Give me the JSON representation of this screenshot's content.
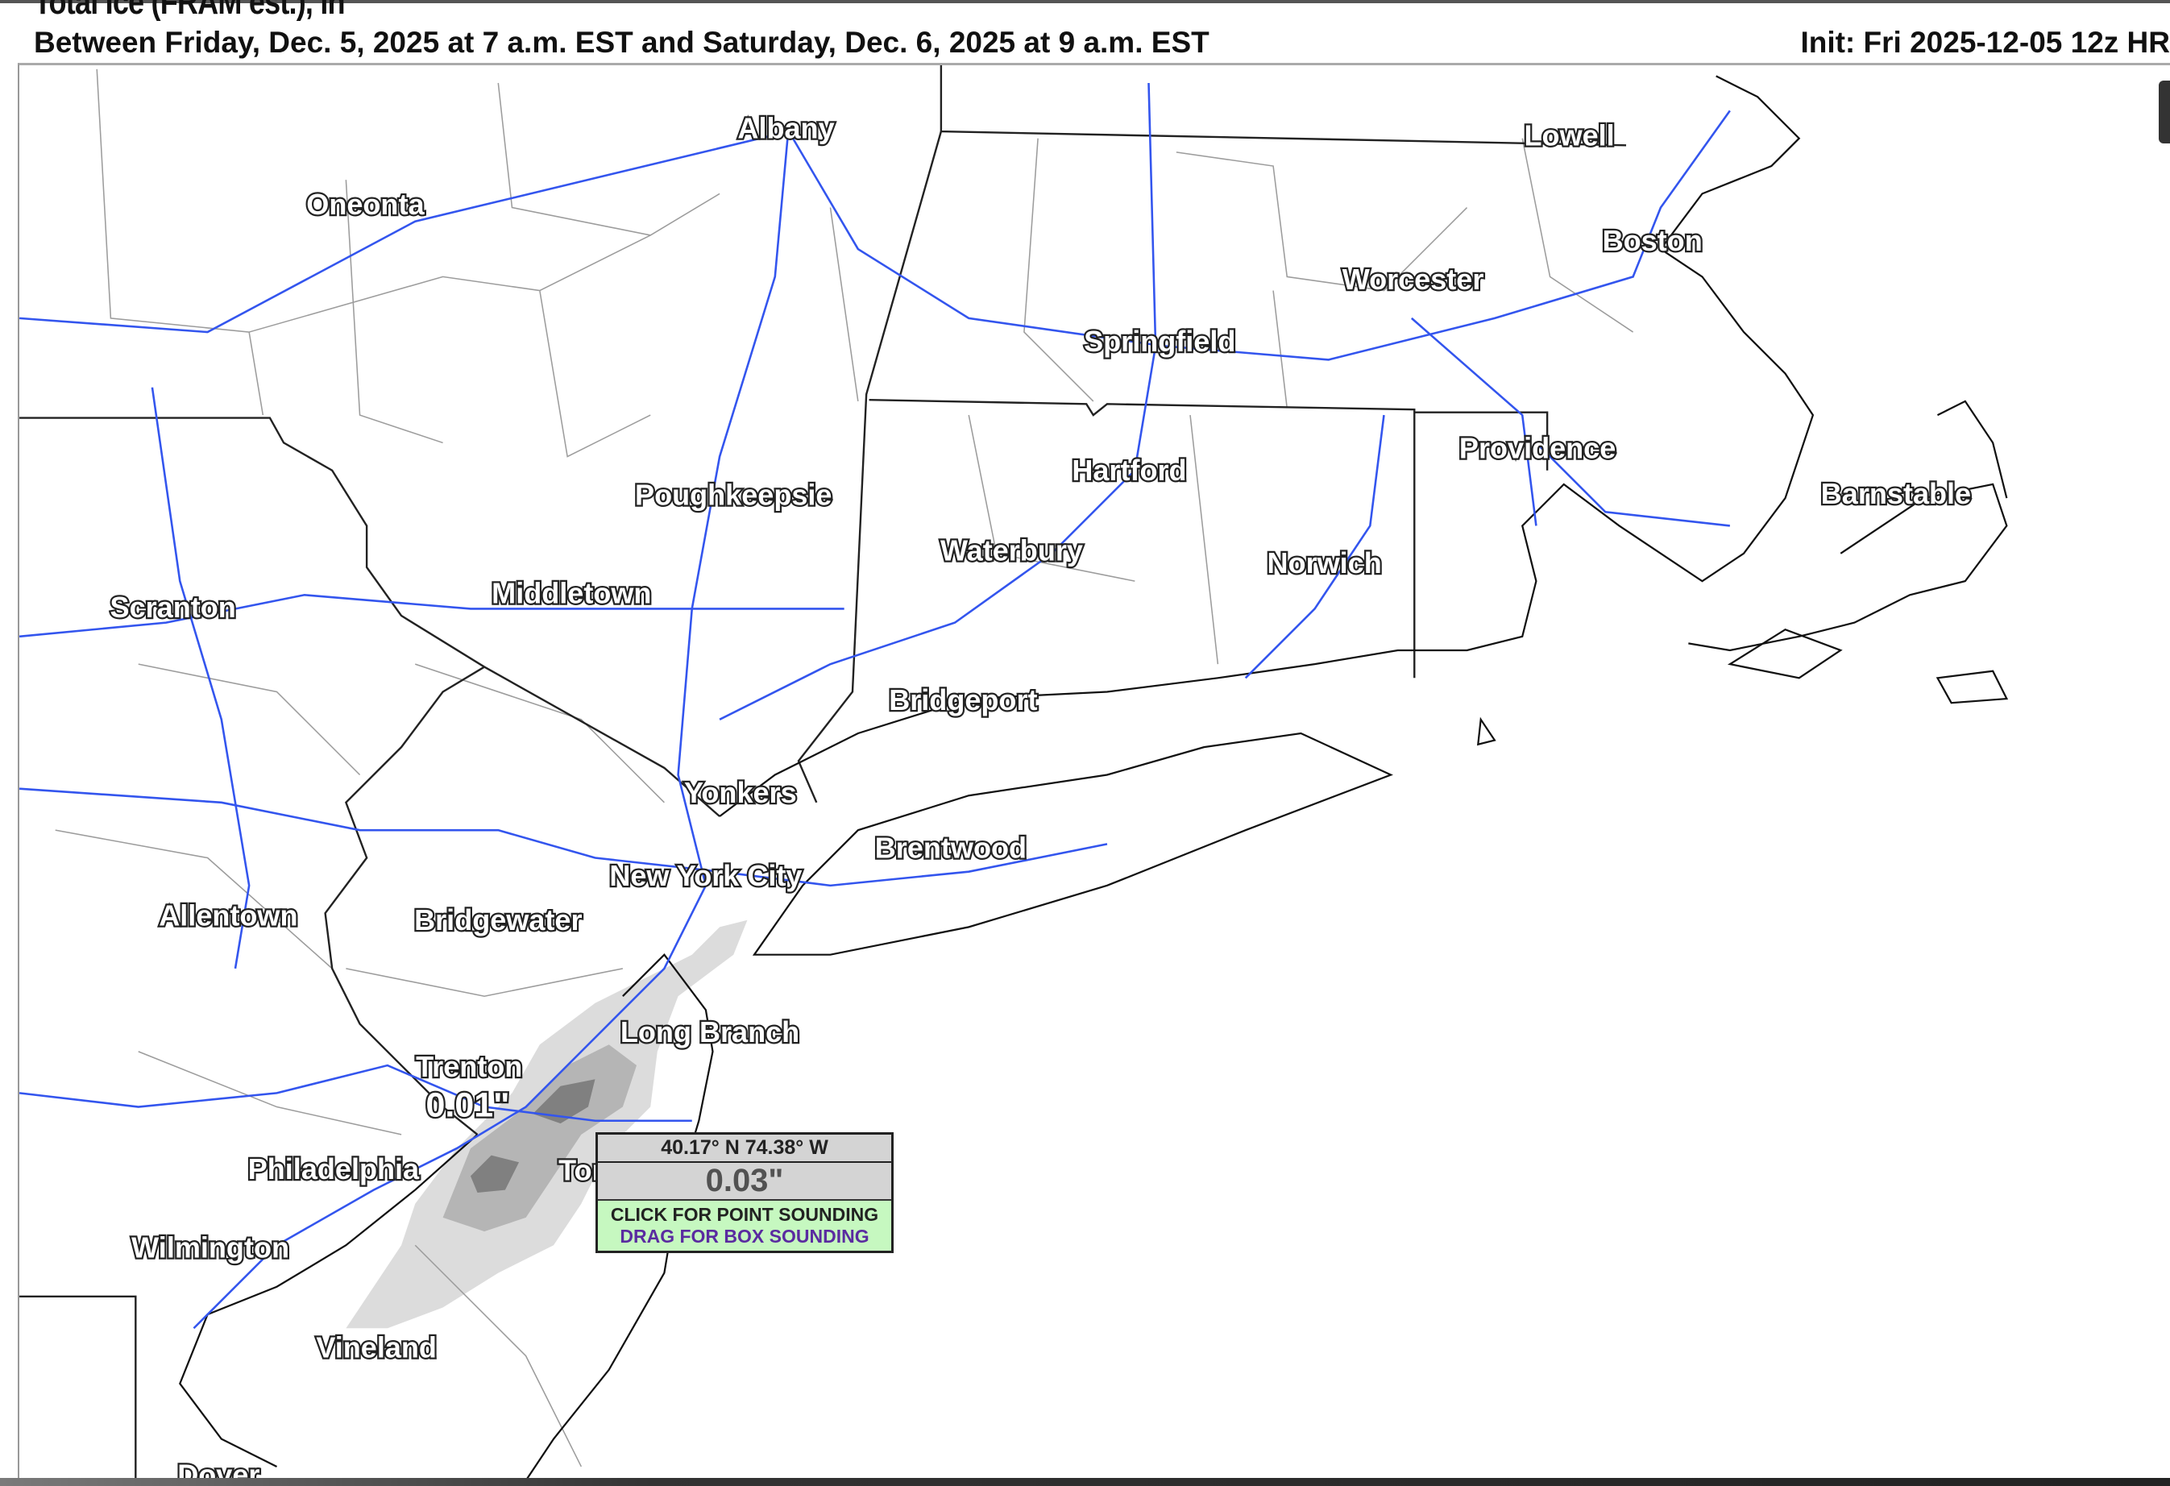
{
  "header": {
    "title": "Total Ice (FRAM est.), in",
    "subtitle": "Between Friday, Dec. 5, 2025 at 7 a.m. EST and Saturday, Dec. 6, 2025 at 9 a.m. EST",
    "init": "Init: Fri 2025-12-05 12z HR"
  },
  "map": {
    "cities": [
      "Albany",
      "Oneonta",
      "Lowell",
      "Boston",
      "Worcester",
      "Springfield",
      "Providence",
      "Barnstable",
      "Hartford",
      "Poughkeepsie",
      "Waterbury",
      "Norwich",
      "Middletown",
      "Scranton",
      "Bridgeport",
      "Yonkers",
      "Brentwood",
      "New York City",
      "Allentown",
      "Bridgewater",
      "Long Branch",
      "Trenton",
      "Philadelphia",
      "Toms River",
      "Wilmington",
      "Vineland",
      "Dover"
    ],
    "point_value_label": "0.01\"",
    "colors": {
      "roads": "#3355ee",
      "state_borders": "#222222",
      "county_borders": "#999999",
      "ice_light": "#d8d8d8",
      "ice_dark": "#8a8a8a"
    }
  },
  "readout": {
    "coords": "40.17° N 74.38° W",
    "value": "0.03\"",
    "point_sounding": "CLICK FOR POINT SOUNDING",
    "box_sounding": "DRAG FOR BOX SOUNDING"
  }
}
